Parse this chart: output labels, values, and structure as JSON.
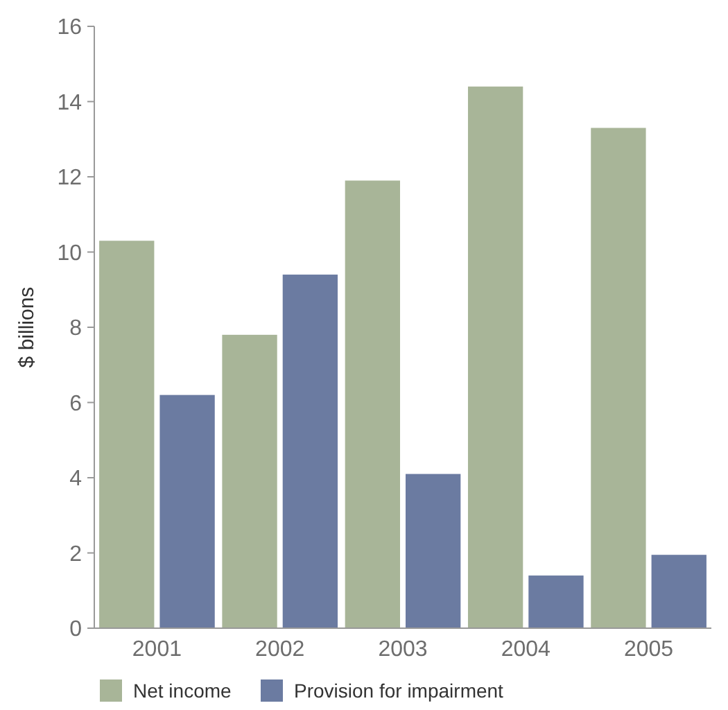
{
  "chart_data": {
    "type": "bar",
    "ylabel": "$ billions",
    "categories": [
      "2001",
      "2002",
      "2003",
      "2004",
      "2005"
    ],
    "series": [
      {
        "name": "Net income",
        "color": "#a8b598",
        "values": [
          10.3,
          7.8,
          11.9,
          14.4,
          13.3
        ]
      },
      {
        "name": "Provision for impairment",
        "color": "#6b7ba1",
        "values": [
          6.2,
          9.4,
          4.1,
          1.4,
          1.95
        ]
      }
    ],
    "ylim": [
      0,
      16
    ],
    "yticks": [
      0,
      2,
      4,
      6,
      8,
      10,
      12,
      14,
      16
    ],
    "legend": "bottom"
  }
}
